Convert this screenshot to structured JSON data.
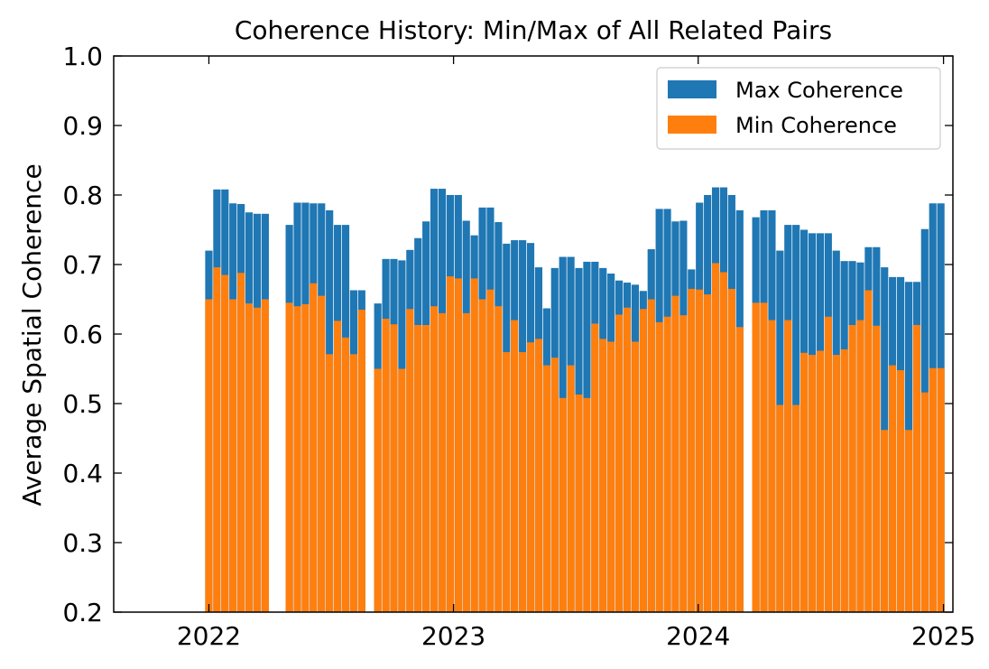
{
  "chart_data": {
    "type": "bar",
    "title": "Coherence History: Min/Max of All Related Pairs",
    "xlabel": "",
    "ylabel": "Average Spatial Coherence",
    "ylim": [
      0.2,
      1.0
    ],
    "xlim": [
      "2021-08-12",
      "2025-01-15"
    ],
    "x_ticks": [
      "2022",
      "2023",
      "2024",
      "2025"
    ],
    "y_ticks": [
      "0.2",
      "0.3",
      "0.4",
      "0.5",
      "0.6",
      "0.7",
      "0.8",
      "0.9",
      "1.0"
    ],
    "grid": false,
    "legend_position": "top-right",
    "colors": {
      "max": "#1f77b4",
      "min": "#ff7f0e"
    },
    "series": [
      {
        "name": "Max Coherence",
        "points": [
          {
            "x": "2022-01-01",
            "y": 0.72
          },
          {
            "x": "2022-01-13",
            "y": 0.808
          },
          {
            "x": "2022-01-25",
            "y": 0.808
          },
          {
            "x": "2022-02-06",
            "y": 0.788
          },
          {
            "x": "2022-02-18",
            "y": 0.787
          },
          {
            "x": "2022-03-02",
            "y": 0.775
          },
          {
            "x": "2022-03-14",
            "y": 0.773
          },
          {
            "x": "2022-03-26",
            "y": 0.773
          },
          {
            "x": "2022-05-01",
            "y": 0.757
          },
          {
            "x": "2022-05-13",
            "y": 0.789
          },
          {
            "x": "2022-05-25",
            "y": 0.789
          },
          {
            "x": "2022-06-06",
            "y": 0.788
          },
          {
            "x": "2022-06-18",
            "y": 0.788
          },
          {
            "x": "2022-06-30",
            "y": 0.778
          },
          {
            "x": "2022-07-12",
            "y": 0.757
          },
          {
            "x": "2022-07-24",
            "y": 0.757
          },
          {
            "x": "2022-08-05",
            "y": 0.663
          },
          {
            "x": "2022-08-17",
            "y": 0.663
          },
          {
            "x": "2022-09-10",
            "y": 0.644
          },
          {
            "x": "2022-09-22",
            "y": 0.708
          },
          {
            "x": "2022-10-04",
            "y": 0.708
          },
          {
            "x": "2022-10-16",
            "y": 0.706
          },
          {
            "x": "2022-10-28",
            "y": 0.721
          },
          {
            "x": "2022-11-09",
            "y": 0.738
          },
          {
            "x": "2022-11-21",
            "y": 0.762
          },
          {
            "x": "2022-12-03",
            "y": 0.809
          },
          {
            "x": "2022-12-15",
            "y": 0.809
          },
          {
            "x": "2022-12-27",
            "y": 0.8
          },
          {
            "x": "2023-01-08",
            "y": 0.8
          },
          {
            "x": "2023-01-20",
            "y": 0.763
          },
          {
            "x": "2023-02-01",
            "y": 0.742
          },
          {
            "x": "2023-02-13",
            "y": 0.782
          },
          {
            "x": "2023-02-25",
            "y": 0.782
          },
          {
            "x": "2023-03-09",
            "y": 0.761
          },
          {
            "x": "2023-03-21",
            "y": 0.73
          },
          {
            "x": "2023-04-02",
            "y": 0.735
          },
          {
            "x": "2023-04-14",
            "y": 0.735
          },
          {
            "x": "2023-04-26",
            "y": 0.731
          },
          {
            "x": "2023-05-08",
            "y": 0.696
          },
          {
            "x": "2023-05-20",
            "y": 0.637
          },
          {
            "x": "2023-06-01",
            "y": 0.695
          },
          {
            "x": "2023-06-13",
            "y": 0.711
          },
          {
            "x": "2023-06-25",
            "y": 0.711
          },
          {
            "x": "2023-07-07",
            "y": 0.695
          },
          {
            "x": "2023-07-19",
            "y": 0.704
          },
          {
            "x": "2023-07-31",
            "y": 0.704
          },
          {
            "x": "2023-08-12",
            "y": 0.695
          },
          {
            "x": "2023-08-24",
            "y": 0.687
          },
          {
            "x": "2023-09-05",
            "y": 0.677
          },
          {
            "x": "2023-09-17",
            "y": 0.674
          },
          {
            "x": "2023-09-29",
            "y": 0.671
          },
          {
            "x": "2023-10-11",
            "y": 0.662
          },
          {
            "x": "2023-10-23",
            "y": 0.722
          },
          {
            "x": "2023-11-04",
            "y": 0.78
          },
          {
            "x": "2023-11-16",
            "y": 0.78
          },
          {
            "x": "2023-11-28",
            "y": 0.762
          },
          {
            "x": "2023-12-10",
            "y": 0.763
          },
          {
            "x": "2023-12-22",
            "y": 0.693
          },
          {
            "x": "2024-01-03",
            "y": 0.789
          },
          {
            "x": "2024-01-15",
            "y": 0.8
          },
          {
            "x": "2024-01-27",
            "y": 0.811
          },
          {
            "x": "2024-02-08",
            "y": 0.811
          },
          {
            "x": "2024-02-20",
            "y": 0.8
          },
          {
            "x": "2024-03-03",
            "y": 0.778
          },
          {
            "x": "2024-03-27",
            "y": 0.768
          },
          {
            "x": "2024-04-08",
            "y": 0.778
          },
          {
            "x": "2024-04-20",
            "y": 0.778
          },
          {
            "x": "2024-05-02",
            "y": 0.72
          },
          {
            "x": "2024-05-14",
            "y": 0.757
          },
          {
            "x": "2024-05-26",
            "y": 0.757
          },
          {
            "x": "2024-06-07",
            "y": 0.75
          },
          {
            "x": "2024-06-19",
            "y": 0.745
          },
          {
            "x": "2024-07-01",
            "y": 0.745
          },
          {
            "x": "2024-07-13",
            "y": 0.745
          },
          {
            "x": "2024-07-25",
            "y": 0.72
          },
          {
            "x": "2024-08-06",
            "y": 0.705
          },
          {
            "x": "2024-08-18",
            "y": 0.705
          },
          {
            "x": "2024-08-30",
            "y": 0.703
          },
          {
            "x": "2024-09-11",
            "y": 0.725
          },
          {
            "x": "2024-09-23",
            "y": 0.725
          },
          {
            "x": "2024-10-05",
            "y": 0.696
          },
          {
            "x": "2024-10-17",
            "y": 0.682
          },
          {
            "x": "2024-10-29",
            "y": 0.682
          },
          {
            "x": "2024-11-10",
            "y": 0.675
          },
          {
            "x": "2024-11-22",
            "y": 0.675
          },
          {
            "x": "2024-12-04",
            "y": 0.751
          },
          {
            "x": "2024-12-16",
            "y": 0.788
          },
          {
            "x": "2024-12-28",
            "y": 0.788
          }
        ]
      },
      {
        "name": "Min Coherence",
        "points": [
          {
            "x": "2022-01-01",
            "y": 0.65
          },
          {
            "x": "2022-01-13",
            "y": 0.696
          },
          {
            "x": "2022-01-25",
            "y": 0.685
          },
          {
            "x": "2022-02-06",
            "y": 0.65
          },
          {
            "x": "2022-02-18",
            "y": 0.688
          },
          {
            "x": "2022-03-02",
            "y": 0.644
          },
          {
            "x": "2022-03-14",
            "y": 0.638
          },
          {
            "x": "2022-03-26",
            "y": 0.65
          },
          {
            "x": "2022-05-01",
            "y": 0.645
          },
          {
            "x": "2022-05-13",
            "y": 0.64
          },
          {
            "x": "2022-05-25",
            "y": 0.643
          },
          {
            "x": "2022-06-06",
            "y": 0.673
          },
          {
            "x": "2022-06-18",
            "y": 0.655
          },
          {
            "x": "2022-06-30",
            "y": 0.571
          },
          {
            "x": "2022-07-12",
            "y": 0.619
          },
          {
            "x": "2022-07-24",
            "y": 0.595
          },
          {
            "x": "2022-08-05",
            "y": 0.571
          },
          {
            "x": "2022-08-17",
            "y": 0.635
          },
          {
            "x": "2022-09-10",
            "y": 0.55
          },
          {
            "x": "2022-09-22",
            "y": 0.622
          },
          {
            "x": "2022-10-04",
            "y": 0.614
          },
          {
            "x": "2022-10-16",
            "y": 0.55
          },
          {
            "x": "2022-10-28",
            "y": 0.636
          },
          {
            "x": "2022-11-09",
            "y": 0.613
          },
          {
            "x": "2022-11-21",
            "y": 0.613
          },
          {
            "x": "2022-12-03",
            "y": 0.64
          },
          {
            "x": "2022-12-15",
            "y": 0.63
          },
          {
            "x": "2022-12-27",
            "y": 0.683
          },
          {
            "x": "2023-01-08",
            "y": 0.68
          },
          {
            "x": "2023-01-20",
            "y": 0.63
          },
          {
            "x": "2023-02-01",
            "y": 0.68
          },
          {
            "x": "2023-02-13",
            "y": 0.65
          },
          {
            "x": "2023-02-25",
            "y": 0.664
          },
          {
            "x": "2023-03-09",
            "y": 0.64
          },
          {
            "x": "2023-03-21",
            "y": 0.574
          },
          {
            "x": "2023-04-02",
            "y": 0.62
          },
          {
            "x": "2023-04-14",
            "y": 0.574
          },
          {
            "x": "2023-04-26",
            "y": 0.588
          },
          {
            "x": "2023-05-08",
            "y": 0.593
          },
          {
            "x": "2023-05-20",
            "y": 0.555
          },
          {
            "x": "2023-06-01",
            "y": 0.566
          },
          {
            "x": "2023-06-13",
            "y": 0.508
          },
          {
            "x": "2023-06-25",
            "y": 0.555
          },
          {
            "x": "2023-07-07",
            "y": 0.513
          },
          {
            "x": "2023-07-19",
            "y": 0.508
          },
          {
            "x": "2023-07-31",
            "y": 0.615
          },
          {
            "x": "2023-08-12",
            "y": 0.593
          },
          {
            "x": "2023-08-24",
            "y": 0.589
          },
          {
            "x": "2023-09-05",
            "y": 0.628
          },
          {
            "x": "2023-09-17",
            "y": 0.638
          },
          {
            "x": "2023-09-29",
            "y": 0.589
          },
          {
            "x": "2023-10-11",
            "y": 0.636
          },
          {
            "x": "2023-10-23",
            "y": 0.65
          },
          {
            "x": "2023-11-04",
            "y": 0.617
          },
          {
            "x": "2023-11-16",
            "y": 0.625
          },
          {
            "x": "2023-11-28",
            "y": 0.655
          },
          {
            "x": "2023-12-10",
            "y": 0.627
          },
          {
            "x": "2023-12-22",
            "y": 0.665
          },
          {
            "x": "2024-01-03",
            "y": 0.664
          },
          {
            "x": "2024-01-15",
            "y": 0.657
          },
          {
            "x": "2024-01-27",
            "y": 0.702
          },
          {
            "x": "2024-02-08",
            "y": 0.689
          },
          {
            "x": "2024-02-20",
            "y": 0.665
          },
          {
            "x": "2024-03-03",
            "y": 0.61
          },
          {
            "x": "2024-03-27",
            "y": 0.645
          },
          {
            "x": "2024-04-08",
            "y": 0.645
          },
          {
            "x": "2024-04-20",
            "y": 0.62
          },
          {
            "x": "2024-05-02",
            "y": 0.498
          },
          {
            "x": "2024-05-14",
            "y": 0.62
          },
          {
            "x": "2024-05-26",
            "y": 0.498
          },
          {
            "x": "2024-06-07",
            "y": 0.573
          },
          {
            "x": "2024-06-19",
            "y": 0.57
          },
          {
            "x": "2024-07-01",
            "y": 0.576
          },
          {
            "x": "2024-07-13",
            "y": 0.625
          },
          {
            "x": "2024-07-25",
            "y": 0.57
          },
          {
            "x": "2024-08-06",
            "y": 0.578
          },
          {
            "x": "2024-08-18",
            "y": 0.613
          },
          {
            "x": "2024-08-30",
            "y": 0.62
          },
          {
            "x": "2024-09-11",
            "y": 0.663
          },
          {
            "x": "2024-09-23",
            "y": 0.612
          },
          {
            "x": "2024-10-05",
            "y": 0.462
          },
          {
            "x": "2024-10-17",
            "y": 0.555
          },
          {
            "x": "2024-10-29",
            "y": 0.548
          },
          {
            "x": "2024-11-10",
            "y": 0.462
          },
          {
            "x": "2024-11-22",
            "y": 0.613
          },
          {
            "x": "2024-12-04",
            "y": 0.516
          },
          {
            "x": "2024-12-16",
            "y": 0.551
          },
          {
            "x": "2024-12-28",
            "y": 0.551
          }
        ]
      }
    ]
  }
}
